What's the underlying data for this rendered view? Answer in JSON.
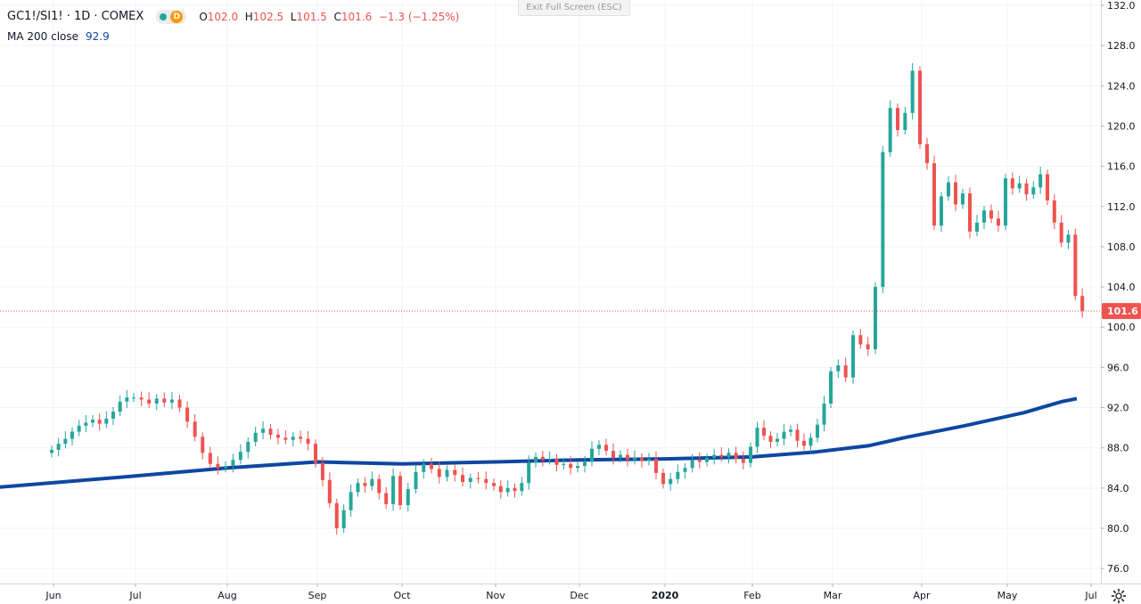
{
  "legend": {
    "symbol": "GC1!/SI1! · 1D · COMEX",
    "dot_color": "#26a69a",
    "d_label": "D",
    "d_color": "#ff9800",
    "o_key": "O",
    "o": "102.0",
    "h_key": "H",
    "h": "102.5",
    "l_key": "L",
    "l": "101.5",
    "c_key": "C",
    "c": "101.6",
    "change": "−1.3 (−1.25%)",
    "ma_label": "MA 200 close",
    "ma_value": "92.9"
  },
  "exit_fullscreen": "Exit Full Screen (ESC)",
  "settings_icon": "gear-icon",
  "colors": {
    "up": "#26a69a",
    "down": "#ef5350",
    "ma": "#0d47a1",
    "grid": "#f0f3fa",
    "axis_text": "#131722",
    "price_badge": "#ef5350"
  },
  "chart_data": {
    "type": "candlestick",
    "y_range": [
      74.5,
      132.6
    ],
    "y_ticks": [
      "132.0",
      "128.0",
      "124.0",
      "120.0",
      "116.0",
      "112.0",
      "108.0",
      "104.0",
      "100.0",
      "96.0",
      "92.0",
      "88.0",
      "84.0",
      "80.0",
      "76.0"
    ],
    "x_labels": [
      {
        "label": "Jun",
        "month_index": 0
      },
      {
        "label": "Jul",
        "month_index": 1
      },
      {
        "label": "Aug",
        "month_index": 2
      },
      {
        "label": "Sep",
        "month_index": 3
      },
      {
        "label": "Oct",
        "month_index": 4
      },
      {
        "label": "Nov",
        "month_index": 5
      },
      {
        "label": "Dec",
        "month_index": 6
      },
      {
        "label": "2020",
        "month_index": 7
      },
      {
        "label": "Feb",
        "month_index": 8
      },
      {
        "label": "Mar",
        "month_index": 9
      },
      {
        "label": "Apr",
        "month_index": 10
      },
      {
        "label": "May",
        "month_index": 11
      },
      {
        "label": "Jul",
        "month_index": 13
      }
    ],
    "last_price": 101.6,
    "last_price_label": "101.6",
    "monthly_closes": [
      {
        "month": "Jun",
        "values": [
          87.8,
          88.4,
          88.9,
          89.6,
          90.2,
          90.5,
          90.8,
          90.4,
          90.9,
          91.6,
          92.6,
          93.0
        ]
      },
      {
        "month": "Jul",
        "values": [
          93.0,
          92.8,
          92.4,
          92.9,
          92.5,
          92.8,
          92.0,
          90.6,
          89.1,
          87.5,
          86.4,
          86.0
        ]
      },
      {
        "month": "Aug",
        "values": [
          86.2,
          86.8,
          87.6,
          88.6,
          89.5,
          89.9,
          89.3,
          89.0,
          88.8,
          89.1,
          88.9,
          88.4
        ]
      },
      {
        "month": "Sep",
        "values": [
          86.5,
          84.8,
          82.5,
          80.0,
          81.8,
          83.6,
          84.5,
          84.2,
          84.9,
          83.5,
          82.4,
          85.2
        ]
      },
      {
        "month": "Oct",
        "values": [
          82.3,
          83.9,
          85.6,
          86.4,
          85.9,
          85.1,
          85.8,
          85.3,
          84.6,
          85.0,
          84.9,
          84.5
        ]
      },
      {
        "month": "Nov",
        "values": [
          84.2,
          83.6,
          84.0,
          83.7,
          84.5,
          86.5,
          87.1,
          86.8,
          86.9,
          86.3,
          86.4,
          86.0
        ]
      },
      {
        "month": "Dec",
        "values": [
          86.2,
          86.6,
          87.9,
          88.3,
          87.7,
          87.0,
          87.3,
          86.8,
          87.0,
          86.7,
          86.9,
          85.5
        ]
      },
      {
        "month": "Jan",
        "values": [
          84.4,
          84.9,
          85.6,
          86.0,
          86.8,
          86.6,
          87.0,
          87.3,
          87.1,
          87.5,
          86.9,
          86.5
        ]
      },
      {
        "month": "Feb",
        "values": [
          88.1,
          90.0,
          89.2,
          88.6,
          88.9,
          89.6,
          89.8,
          88.7,
          88.2,
          89.0,
          90.3,
          92.4
        ]
      },
      {
        "month": "Mar",
        "values": [
          95.6,
          96.2,
          95.0,
          99.2,
          98.3,
          97.8,
          104.0,
          117.4,
          121.8,
          119.6,
          121.3,
          125.5
        ]
      },
      {
        "month": "Apr",
        "values": [
          118.2,
          116.3,
          110.1,
          113.0,
          114.4,
          112.2,
          113.3,
          109.5,
          110.4,
          111.6,
          110.8,
          110.1
        ]
      },
      {
        "month": "May",
        "values": [
          114.8,
          113.8,
          114.3,
          113.2,
          113.9,
          115.2,
          112.6,
          110.4,
          108.4,
          109.2,
          103.1,
          101.6
        ]
      }
    ],
    "ma200": {
      "name": "MA 200 close",
      "points": [
        [
          0,
          84.1
        ],
        [
          1,
          85.2
        ],
        [
          2,
          86.0
        ],
        [
          3,
          86.6
        ],
        [
          4,
          86.4
        ],
        [
          5,
          86.6
        ],
        [
          6,
          86.8
        ],
        [
          7,
          86.9
        ],
        [
          8,
          87.1
        ],
        [
          8.8,
          87.6
        ],
        [
          9.4,
          88.2
        ],
        [
          9.8,
          89.0
        ],
        [
          10.5,
          90.2
        ],
        [
          11.2,
          91.5
        ],
        [
          11.65,
          92.6
        ],
        [
          11.83,
          92.9
        ]
      ]
    }
  }
}
